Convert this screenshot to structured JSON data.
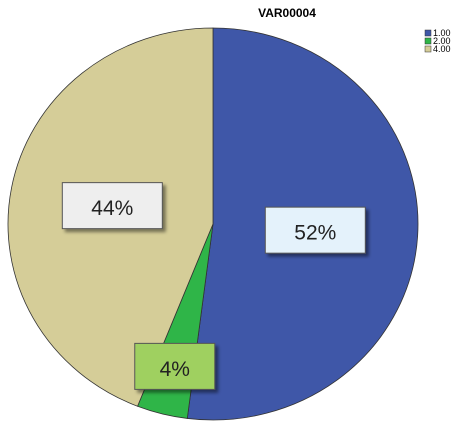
{
  "chart_data": {
    "type": "pie",
    "title": "VAR00004",
    "categories": [
      "1.00",
      "2.00",
      "4.00"
    ],
    "values": [
      52,
      4,
      44
    ],
    "value_labels": [
      "52%",
      "4%",
      "44%"
    ],
    "colors": [
      "#3f57a8",
      "#2fb548",
      "#d5cd98"
    ]
  }
}
